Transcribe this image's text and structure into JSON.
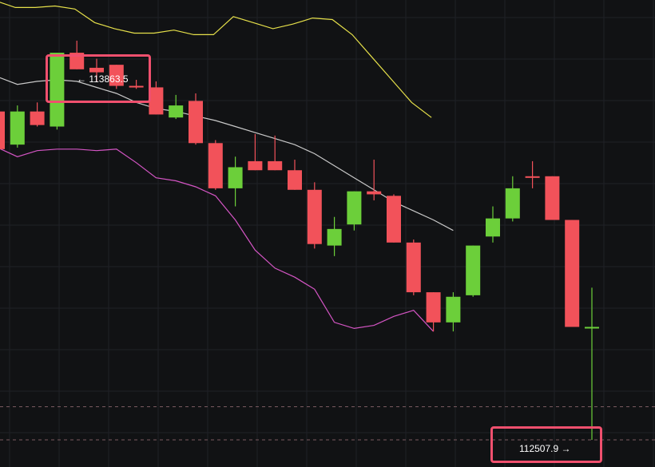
{
  "chart_data": {
    "type": "candlestick",
    "annotations": {
      "high": {
        "text": "113863.5",
        "arrow": "←",
        "value": 113863.5,
        "candle_index": 3
      },
      "low": {
        "text": "112507.9",
        "arrow": "→",
        "value": 112507.9,
        "candle_index": 28
      }
    },
    "reference_lines": [
      112640,
      112530
    ],
    "ylim": [
      112440,
      113990
    ],
    "candles": [
      {
        "o": 113620,
        "h": 113690,
        "l": 113495,
        "c": 113495
      },
      {
        "o": 113510,
        "h": 113640,
        "l": 113500,
        "c": 113620
      },
      {
        "o": 113620,
        "h": 113650,
        "l": 113570,
        "c": 113575
      },
      {
        "o": 113570,
        "h": 113815,
        "l": 113560,
        "c": 113815
      },
      {
        "o": 113815,
        "h": 113855,
        "l": 113770,
        "c": 113760
      },
      {
        "o": 113765,
        "h": 113795,
        "l": 113720,
        "c": 113750
      },
      {
        "o": 113775,
        "h": 113760,
        "l": 113695,
        "c": 113705
      },
      {
        "o": 113705,
        "h": 113725,
        "l": 113695,
        "c": 113700
      },
      {
        "o": 113700,
        "h": 113720,
        "l": 113610,
        "c": 113610
      },
      {
        "o": 113600,
        "h": 113675,
        "l": 113595,
        "c": 113640
      },
      {
        "o": 113655,
        "h": 113680,
        "l": 113510,
        "c": 113515
      },
      {
        "o": 113515,
        "h": 113525,
        "l": 113360,
        "c": 113365
      },
      {
        "o": 113365,
        "h": 113470,
        "l": 113305,
        "c": 113435
      },
      {
        "o": 113455,
        "h": 113545,
        "l": 113425,
        "c": 113425
      },
      {
        "o": 113455,
        "h": 113540,
        "l": 113425,
        "c": 113425
      },
      {
        "o": 113425,
        "h": 113460,
        "l": 113360,
        "c": 113360
      },
      {
        "o": 113360,
        "h": 113385,
        "l": 113165,
        "c": 113180
      },
      {
        "o": 113175,
        "h": 113270,
        "l": 113140,
        "c": 113230
      },
      {
        "o": 113245,
        "h": 113355,
        "l": 113225,
        "c": 113355
      },
      {
        "o": 113355,
        "h": 113460,
        "l": 113325,
        "c": 113345
      },
      {
        "o": 113340,
        "h": 113345,
        "l": 113185,
        "c": 113185
      },
      {
        "o": 113185,
        "h": 113195,
        "l": 113010,
        "c": 113020
      },
      {
        "o": 113020,
        "h": 113005,
        "l": 112890,
        "c": 112920
      },
      {
        "o": 112920,
        "h": 113020,
        "l": 112890,
        "c": 113005
      },
      {
        "o": 113010,
        "h": 113175,
        "l": 113005,
        "c": 113175
      },
      {
        "o": 113205,
        "h": 113305,
        "l": 113185,
        "c": 113265
      },
      {
        "o": 113265,
        "h": 113405,
        "l": 113255,
        "c": 113365
      },
      {
        "o": 113405,
        "h": 113455,
        "l": 113365,
        "c": 113400
      },
      {
        "o": 113405,
        "h": 113405,
        "l": 113260,
        "c": 113260
      },
      {
        "o": 113260,
        "h": 113260,
        "l": 112905,
        "c": 112905
      },
      {
        "o": 112905,
        "h": 113035,
        "l": 112530,
        "c": 112905
      }
    ],
    "bands": {
      "upper": [
        113985,
        113965,
        113965,
        113970,
        113960,
        113915,
        113895,
        113880,
        113880,
        113890,
        113875,
        113875,
        113935,
        113915,
        113895,
        113910,
        113930,
        113925,
        113875,
        113800,
        113725,
        113650,
        113600
      ],
      "middle": [
        113735,
        113710,
        113720,
        113725,
        113720,
        113700,
        113680,
        113650,
        113630,
        113620,
        113605,
        113590,
        113570,
        113550,
        113530,
        113510,
        113480,
        113440,
        113400,
        113360,
        113320,
        113290,
        113260,
        113225
      ],
      "lower": [
        113500,
        113470,
        113490,
        113495,
        113495,
        113490,
        113495,
        113450,
        113400,
        113390,
        113370,
        113340,
        113260,
        113160,
        113100,
        113070,
        113030,
        112920,
        112900,
        112910,
        112940,
        112960,
        112890
      ],
      "upper_x": [
        0,
        0.9,
        1.9,
        2.9,
        3.9,
        4.9,
        5.9,
        6.9,
        7.9,
        8.9,
        9.9,
        10.9,
        11.9,
        12.9,
        13.9,
        14.9,
        15.9,
        16.9,
        17.9,
        18.9,
        19.9,
        20.9,
        21.9
      ],
      "middle_x": [
        0,
        1,
        2,
        3,
        4,
        5,
        6,
        7,
        8,
        9,
        10,
        11,
        12,
        13,
        14,
        15,
        16,
        17,
        18,
        19,
        20,
        21,
        22,
        23
      ],
      "lower_x": [
        0,
        1,
        2,
        3,
        4,
        5,
        6,
        7,
        8,
        9,
        10,
        11,
        12,
        13,
        14,
        15,
        16,
        17,
        18,
        19,
        20,
        21,
        22
      ]
    },
    "colors": {
      "background": "#111214",
      "grid": "#1f2126",
      "up": "#6ccf3a",
      "down": "#f2525a",
      "upper_band": "#e6e04a",
      "middle_band": "#c9c9c9",
      "lower_band": "#d455c4",
      "highlight": "#f0506e",
      "ref_line": "#7a5a60"
    },
    "grid": true
  }
}
